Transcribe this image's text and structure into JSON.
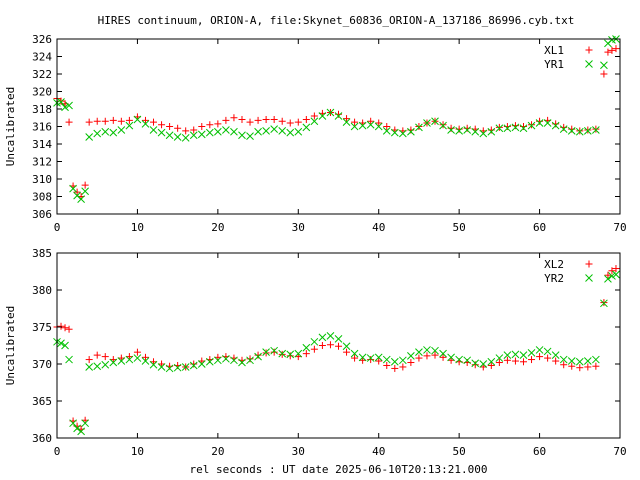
{
  "title": "HIRES continuum, ORION-A, file:Skynet_60836_ORION-A_137186_86996.cyb.txt",
  "chart_data": [
    {
      "type": "scatter",
      "ylabel": "Uncalibrated",
      "xlabel": "",
      "xlim": [
        0,
        70
      ],
      "ylim": [
        306,
        326
      ],
      "xticks": [
        0,
        10,
        20,
        30,
        40,
        50,
        60,
        70
      ],
      "yticks": [
        306,
        308,
        310,
        312,
        314,
        316,
        318,
        320,
        322,
        324,
        326
      ],
      "legend_position": "top-right",
      "series": [
        {
          "name": "XL1",
          "marker": "plus",
          "color": "#ff0000",
          "x": [
            0,
            0.5,
            1,
            1.5,
            2,
            2.5,
            3,
            3.5,
            4,
            5,
            6,
            7,
            8,
            9,
            10,
            11,
            12,
            13,
            14,
            15,
            16,
            17,
            18,
            19,
            20,
            21,
            22,
            23,
            24,
            25,
            26,
            27,
            28,
            29,
            30,
            31,
            32,
            33,
            34,
            35,
            36,
            37,
            38,
            39,
            40,
            41,
            42,
            43,
            44,
            45,
            46,
            47,
            48,
            49,
            50,
            51,
            52,
            53,
            54,
            55,
            56,
            57,
            58,
            59,
            60,
            61,
            62,
            63,
            64,
            65,
            66,
            67,
            68,
            68.5,
            69,
            69.5
          ],
          "y": [
            319.2,
            318.9,
            318.6,
            316.5,
            309.2,
            308.5,
            308.0,
            309.3,
            316.5,
            316.6,
            316.6,
            316.7,
            316.6,
            316.7,
            317.1,
            316.7,
            316.5,
            316.2,
            316.0,
            315.8,
            315.5,
            315.6,
            316.0,
            316.2,
            316.3,
            316.7,
            317.0,
            316.8,
            316.5,
            316.7,
            316.8,
            316.8,
            316.6,
            316.4,
            316.5,
            316.8,
            317.2,
            317.5,
            317.6,
            317.4,
            316.9,
            316.5,
            316.4,
            316.6,
            316.4,
            316.0,
            315.6,
            315.5,
            315.6,
            316.0,
            316.4,
            316.6,
            316.2,
            315.8,
            315.7,
            315.8,
            315.7,
            315.5,
            315.6,
            315.9,
            316.0,
            316.1,
            316.0,
            316.2,
            316.6,
            316.7,
            316.3,
            315.9,
            315.7,
            315.5,
            315.6,
            315.7,
            322.0,
            324.5,
            324.7,
            324.9
          ]
        },
        {
          "name": "YR1",
          "marker": "cross",
          "color": "#00c000",
          "x": [
            0,
            0.5,
            1,
            1.5,
            2,
            2.5,
            3,
            3.5,
            4,
            5,
            6,
            7,
            8,
            9,
            10,
            11,
            12,
            13,
            14,
            15,
            16,
            17,
            18,
            19,
            20,
            21,
            22,
            23,
            24,
            25,
            26,
            27,
            28,
            29,
            30,
            31,
            32,
            33,
            34,
            35,
            36,
            37,
            38,
            39,
            40,
            41,
            42,
            43,
            44,
            45,
            46,
            47,
            48,
            49,
            50,
            51,
            52,
            53,
            54,
            55,
            56,
            57,
            58,
            59,
            60,
            61,
            62,
            63,
            64,
            65,
            66,
            67,
            68,
            68.5,
            69,
            69.5
          ],
          "y": [
            318.7,
            318.8,
            318.2,
            318.4,
            308.9,
            308.1,
            307.7,
            308.6,
            314.8,
            315.2,
            315.4,
            315.3,
            315.6,
            316.1,
            316.8,
            316.3,
            315.6,
            315.3,
            315.0,
            314.8,
            314.7,
            315.0,
            315.1,
            315.3,
            315.4,
            315.6,
            315.4,
            315.0,
            314.9,
            315.4,
            315.5,
            315.7,
            315.5,
            315.3,
            315.4,
            315.9,
            316.6,
            317.2,
            317.6,
            317.2,
            316.5,
            316.0,
            316.1,
            316.2,
            316.0,
            315.5,
            315.3,
            315.2,
            315.4,
            315.9,
            316.4,
            316.6,
            316.1,
            315.6,
            315.5,
            315.6,
            315.4,
            315.2,
            315.4,
            315.8,
            315.8,
            315.9,
            315.8,
            316.1,
            316.4,
            316.4,
            316.1,
            315.7,
            315.5,
            315.4,
            315.5,
            315.6,
            323.0,
            325.5,
            325.9,
            326.0
          ]
        }
      ]
    },
    {
      "type": "scatter",
      "ylabel": "Uncalibrated",
      "xlabel": "rel seconds : UT date 2025-06-10T20:13:21.000",
      "xlim": [
        0,
        70
      ],
      "ylim": [
        360,
        385
      ],
      "xticks": [
        0,
        10,
        20,
        30,
        40,
        50,
        60,
        70
      ],
      "yticks": [
        360,
        365,
        370,
        375,
        380,
        385
      ],
      "legend_position": "top-right",
      "series": [
        {
          "name": "XL2",
          "marker": "plus",
          "color": "#ff0000",
          "x": [
            0,
            0.5,
            1,
            1.5,
            2,
            2.5,
            3,
            3.5,
            4,
            5,
            6,
            7,
            8,
            9,
            10,
            11,
            12,
            13,
            14,
            15,
            16,
            17,
            18,
            19,
            20,
            21,
            22,
            23,
            24,
            25,
            26,
            27,
            28,
            29,
            30,
            31,
            32,
            33,
            34,
            35,
            36,
            37,
            38,
            39,
            40,
            41,
            42,
            43,
            44,
            45,
            46,
            47,
            48,
            49,
            50,
            51,
            52,
            53,
            54,
            55,
            56,
            57,
            58,
            59,
            60,
            61,
            62,
            63,
            64,
            65,
            66,
            67,
            68,
            68.5,
            69,
            69.5
          ],
          "y": [
            375.0,
            375.1,
            374.9,
            374.7,
            362.3,
            361.6,
            361.2,
            362.4,
            370.6,
            371.2,
            371.0,
            370.6,
            370.8,
            371.0,
            371.6,
            370.9,
            370.3,
            370.0,
            369.7,
            369.8,
            369.6,
            370.0,
            370.4,
            370.6,
            370.9,
            371.0,
            370.8,
            370.5,
            370.7,
            371.2,
            371.5,
            371.6,
            371.3,
            371.1,
            371.0,
            371.4,
            372.0,
            372.5,
            372.6,
            372.4,
            371.6,
            370.8,
            370.5,
            370.6,
            370.4,
            369.8,
            369.4,
            369.6,
            370.2,
            370.8,
            371.1,
            371.2,
            370.9,
            370.5,
            370.3,
            370.2,
            369.9,
            369.6,
            369.8,
            370.2,
            370.5,
            370.4,
            370.3,
            370.6,
            371.0,
            370.8,
            370.4,
            369.9,
            369.7,
            369.5,
            369.6,
            369.7,
            378.3,
            382.0,
            382.6,
            382.9
          ]
        },
        {
          "name": "YR2",
          "marker": "cross",
          "color": "#00c000",
          "x": [
            0,
            0.5,
            1,
            1.5,
            2,
            2.5,
            3,
            3.5,
            4,
            5,
            6,
            7,
            8,
            9,
            10,
            11,
            12,
            13,
            14,
            15,
            16,
            17,
            18,
            19,
            20,
            21,
            22,
            23,
            24,
            25,
            26,
            27,
            28,
            29,
            30,
            31,
            32,
            33,
            34,
            35,
            36,
            37,
            38,
            39,
            40,
            41,
            42,
            43,
            44,
            45,
            46,
            47,
            48,
            49,
            50,
            51,
            52,
            53,
            54,
            55,
            56,
            57,
            58,
            59,
            60,
            61,
            62,
            63,
            64,
            65,
            66,
            67,
            68,
            68.5,
            69,
            69.5
          ],
          "y": [
            373.0,
            372.8,
            372.5,
            370.6,
            362.0,
            361.3,
            360.9,
            362.0,
            369.6,
            369.7,
            369.9,
            370.2,
            370.4,
            370.6,
            370.8,
            370.4,
            369.9,
            369.6,
            369.4,
            369.5,
            369.6,
            369.8,
            370.0,
            370.3,
            370.5,
            370.7,
            370.5,
            370.2,
            370.5,
            371.0,
            371.6,
            371.8,
            371.4,
            371.3,
            371.4,
            372.2,
            373.0,
            373.6,
            373.8,
            373.4,
            372.4,
            371.4,
            370.9,
            370.8,
            370.9,
            370.6,
            370.3,
            370.5,
            371.1,
            371.6,
            371.9,
            371.8,
            371.4,
            370.9,
            370.6,
            370.5,
            370.1,
            370.0,
            370.3,
            370.8,
            371.2,
            371.3,
            371.2,
            371.5,
            371.9,
            371.7,
            371.2,
            370.6,
            370.4,
            370.3,
            370.4,
            370.6,
            378.2,
            381.5,
            381.9,
            382.1
          ]
        }
      ]
    }
  ]
}
